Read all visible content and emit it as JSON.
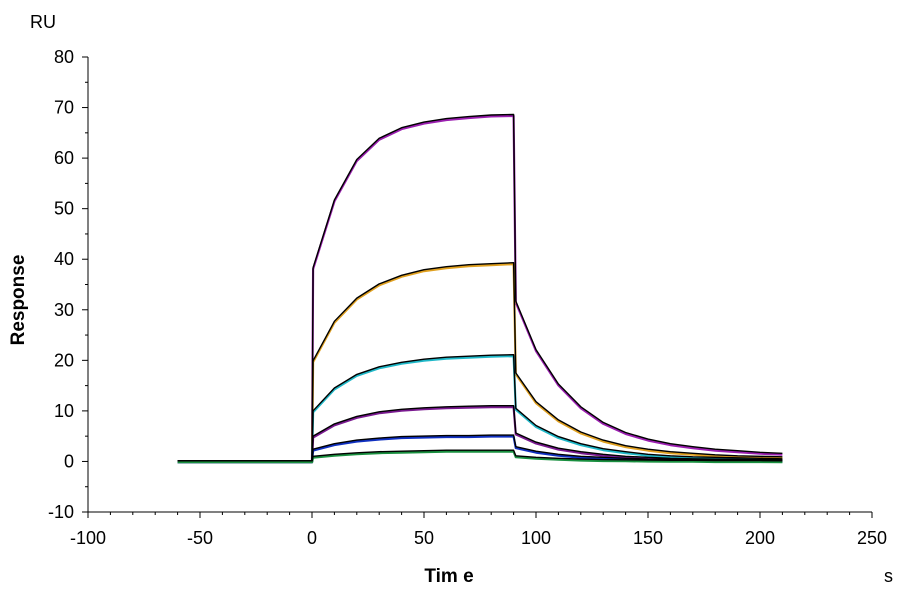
{
  "chart_data": {
    "type": "line",
    "title": "",
    "xlabel": "Tim e",
    "x_unit": "s",
    "ylabel": "Response",
    "y_unit": "RU",
    "xlim": [
      -100,
      250
    ],
    "ylim": [
      -10,
      80
    ],
    "x_ticks": [
      -100,
      -50,
      0,
      50,
      100,
      150,
      200,
      250
    ],
    "y_ticks": [
      -10,
      0,
      10,
      20,
      30,
      40,
      50,
      60,
      70,
      80
    ],
    "grid": false,
    "legend": "none",
    "x": [
      -60,
      -40,
      -20,
      0,
      0.5,
      10,
      20,
      30,
      40,
      50,
      60,
      70,
      80,
      90,
      91,
      100,
      110,
      120,
      130,
      140,
      150,
      160,
      170,
      180,
      190,
      200,
      210
    ],
    "series": [
      {
        "color": "#9b1fb0",
        "values": [
          0,
          0,
          0,
          0,
          38.2,
          51.6,
          59.6,
          63.8,
          65.9,
          67.0,
          67.7,
          68.1,
          68.4,
          68.5,
          31.6,
          22.0,
          15.2,
          10.7,
          7.6,
          5.6,
          4.3,
          3.4,
          2.8,
          2.3,
          2.0,
          1.7,
          1.5
        ]
      },
      {
        "color": "#e0a020",
        "values": [
          0,
          0,
          0,
          0,
          19.8,
          27.6,
          32.2,
          35.0,
          36.7,
          37.8,
          38.4,
          38.8,
          39.0,
          39.2,
          17.4,
          11.7,
          8.1,
          5.7,
          4.1,
          3.0,
          2.3,
          1.8,
          1.5,
          1.2,
          1.0,
          0.9,
          0.8
        ]
      },
      {
        "color": "#20b8c8",
        "values": [
          0,
          0,
          0,
          0,
          9.9,
          14.4,
          17.1,
          18.6,
          19.5,
          20.1,
          20.5,
          20.7,
          20.9,
          21.0,
          10.4,
          7.0,
          4.8,
          3.4,
          2.4,
          1.8,
          1.3,
          1.0,
          0.8,
          0.7,
          0.6,
          0.5,
          0.4
        ]
      },
      {
        "color": "#7a1a90",
        "values": [
          0,
          0,
          0,
          0,
          4.9,
          7.3,
          8.8,
          9.7,
          10.2,
          10.5,
          10.7,
          10.8,
          10.9,
          10.9,
          5.5,
          3.7,
          2.5,
          1.8,
          1.3,
          0.9,
          0.7,
          0.5,
          0.4,
          0.35,
          0.3,
          0.25,
          0.2
        ]
      },
      {
        "color": "#1030c0",
        "values": [
          0,
          0,
          0,
          0,
          2.3,
          3.4,
          4.1,
          4.5,
          4.8,
          4.9,
          5.0,
          5.0,
          5.1,
          5.1,
          2.8,
          1.9,
          1.3,
          0.9,
          0.7,
          0.5,
          0.35,
          0.3,
          0.25,
          0.2,
          0.15,
          0.1,
          0.1
        ]
      },
      {
        "color": "#1a9040",
        "values": [
          0,
          0,
          0,
          0,
          0.9,
          1.3,
          1.6,
          1.8,
          1.9,
          2.0,
          2.1,
          2.1,
          2.1,
          2.1,
          1.0,
          0.7,
          0.5,
          0.35,
          0.25,
          0.2,
          0.15,
          0.1,
          0.1,
          0.05,
          0.05,
          0.05,
          0.0
        ]
      }
    ],
    "fit_color": "#000000"
  }
}
